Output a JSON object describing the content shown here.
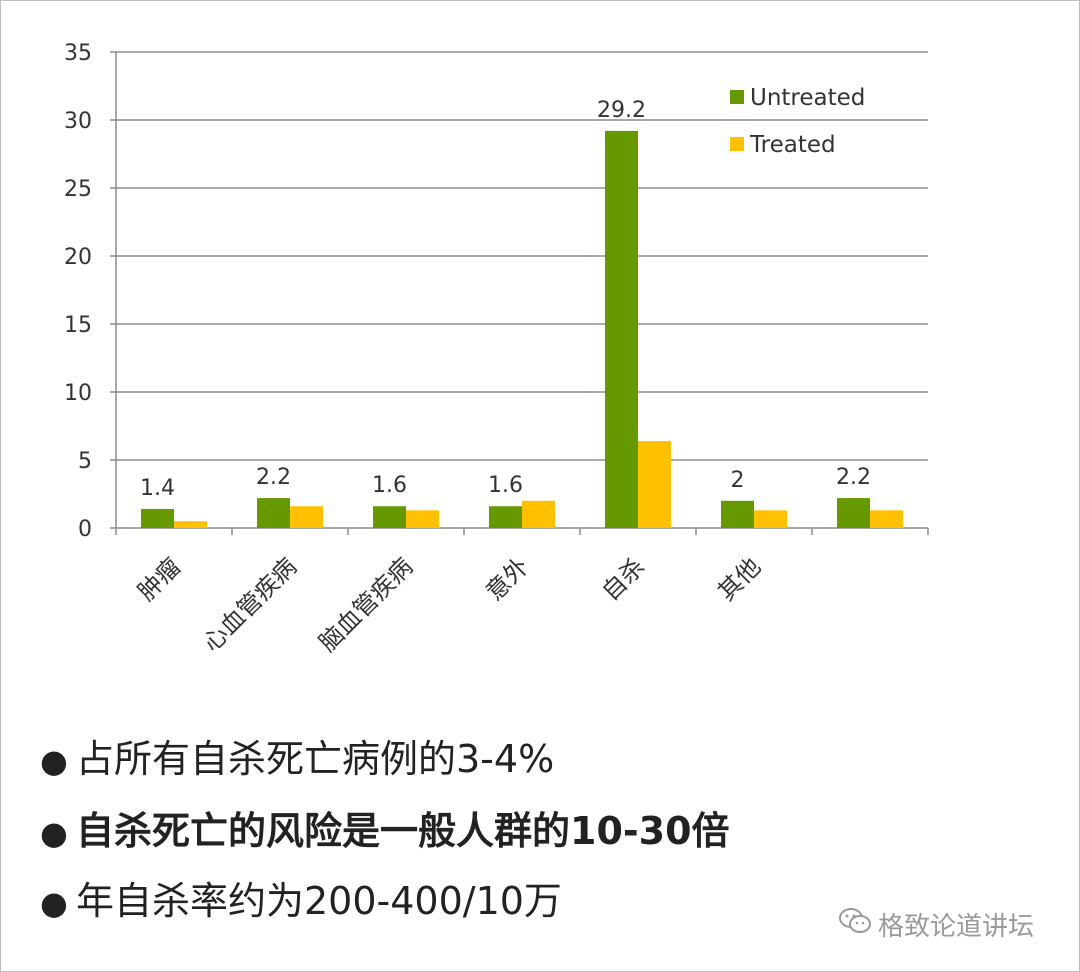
{
  "chart_data": {
    "type": "bar",
    "categories": [
      "肿瘤",
      "心血管疾病",
      "脑血管疾病",
      "意外",
      "自杀",
      "其他",
      ""
    ],
    "series": [
      {
        "name": "Untreated",
        "color": "#669900",
        "values": [
          1.4,
          2.2,
          1.6,
          1.6,
          29.2,
          2.0,
          2.2
        ],
        "labels": [
          "1.4",
          "2.2",
          "1.6",
          "1.6",
          "29.2",
          "2",
          "2.2"
        ]
      },
      {
        "name": "Treated",
        "color": "#ffc000",
        "values": [
          0.5,
          1.6,
          1.3,
          2.0,
          6.4,
          1.3,
          1.3
        ]
      }
    ],
    "yticks": [
      "0",
      "5",
      "10",
      "15",
      "20",
      "25",
      "30",
      "35"
    ],
    "ylim": [
      0,
      35
    ],
    "grid": true,
    "legend_position": "top-right"
  },
  "bullets": [
    {
      "dot": "●",
      "text": "占所有自杀死亡病例的3-4%",
      "bold": false
    },
    {
      "dot": "●",
      "text": "自杀死亡的风险是一般人群的10-30倍",
      "bold": true
    },
    {
      "dot": "●",
      "text": "年自杀率约为200-400/10万",
      "bold": false
    }
  ],
  "watermark": {
    "icon": "wechat-icon",
    "text": "格致论道讲坛"
  }
}
